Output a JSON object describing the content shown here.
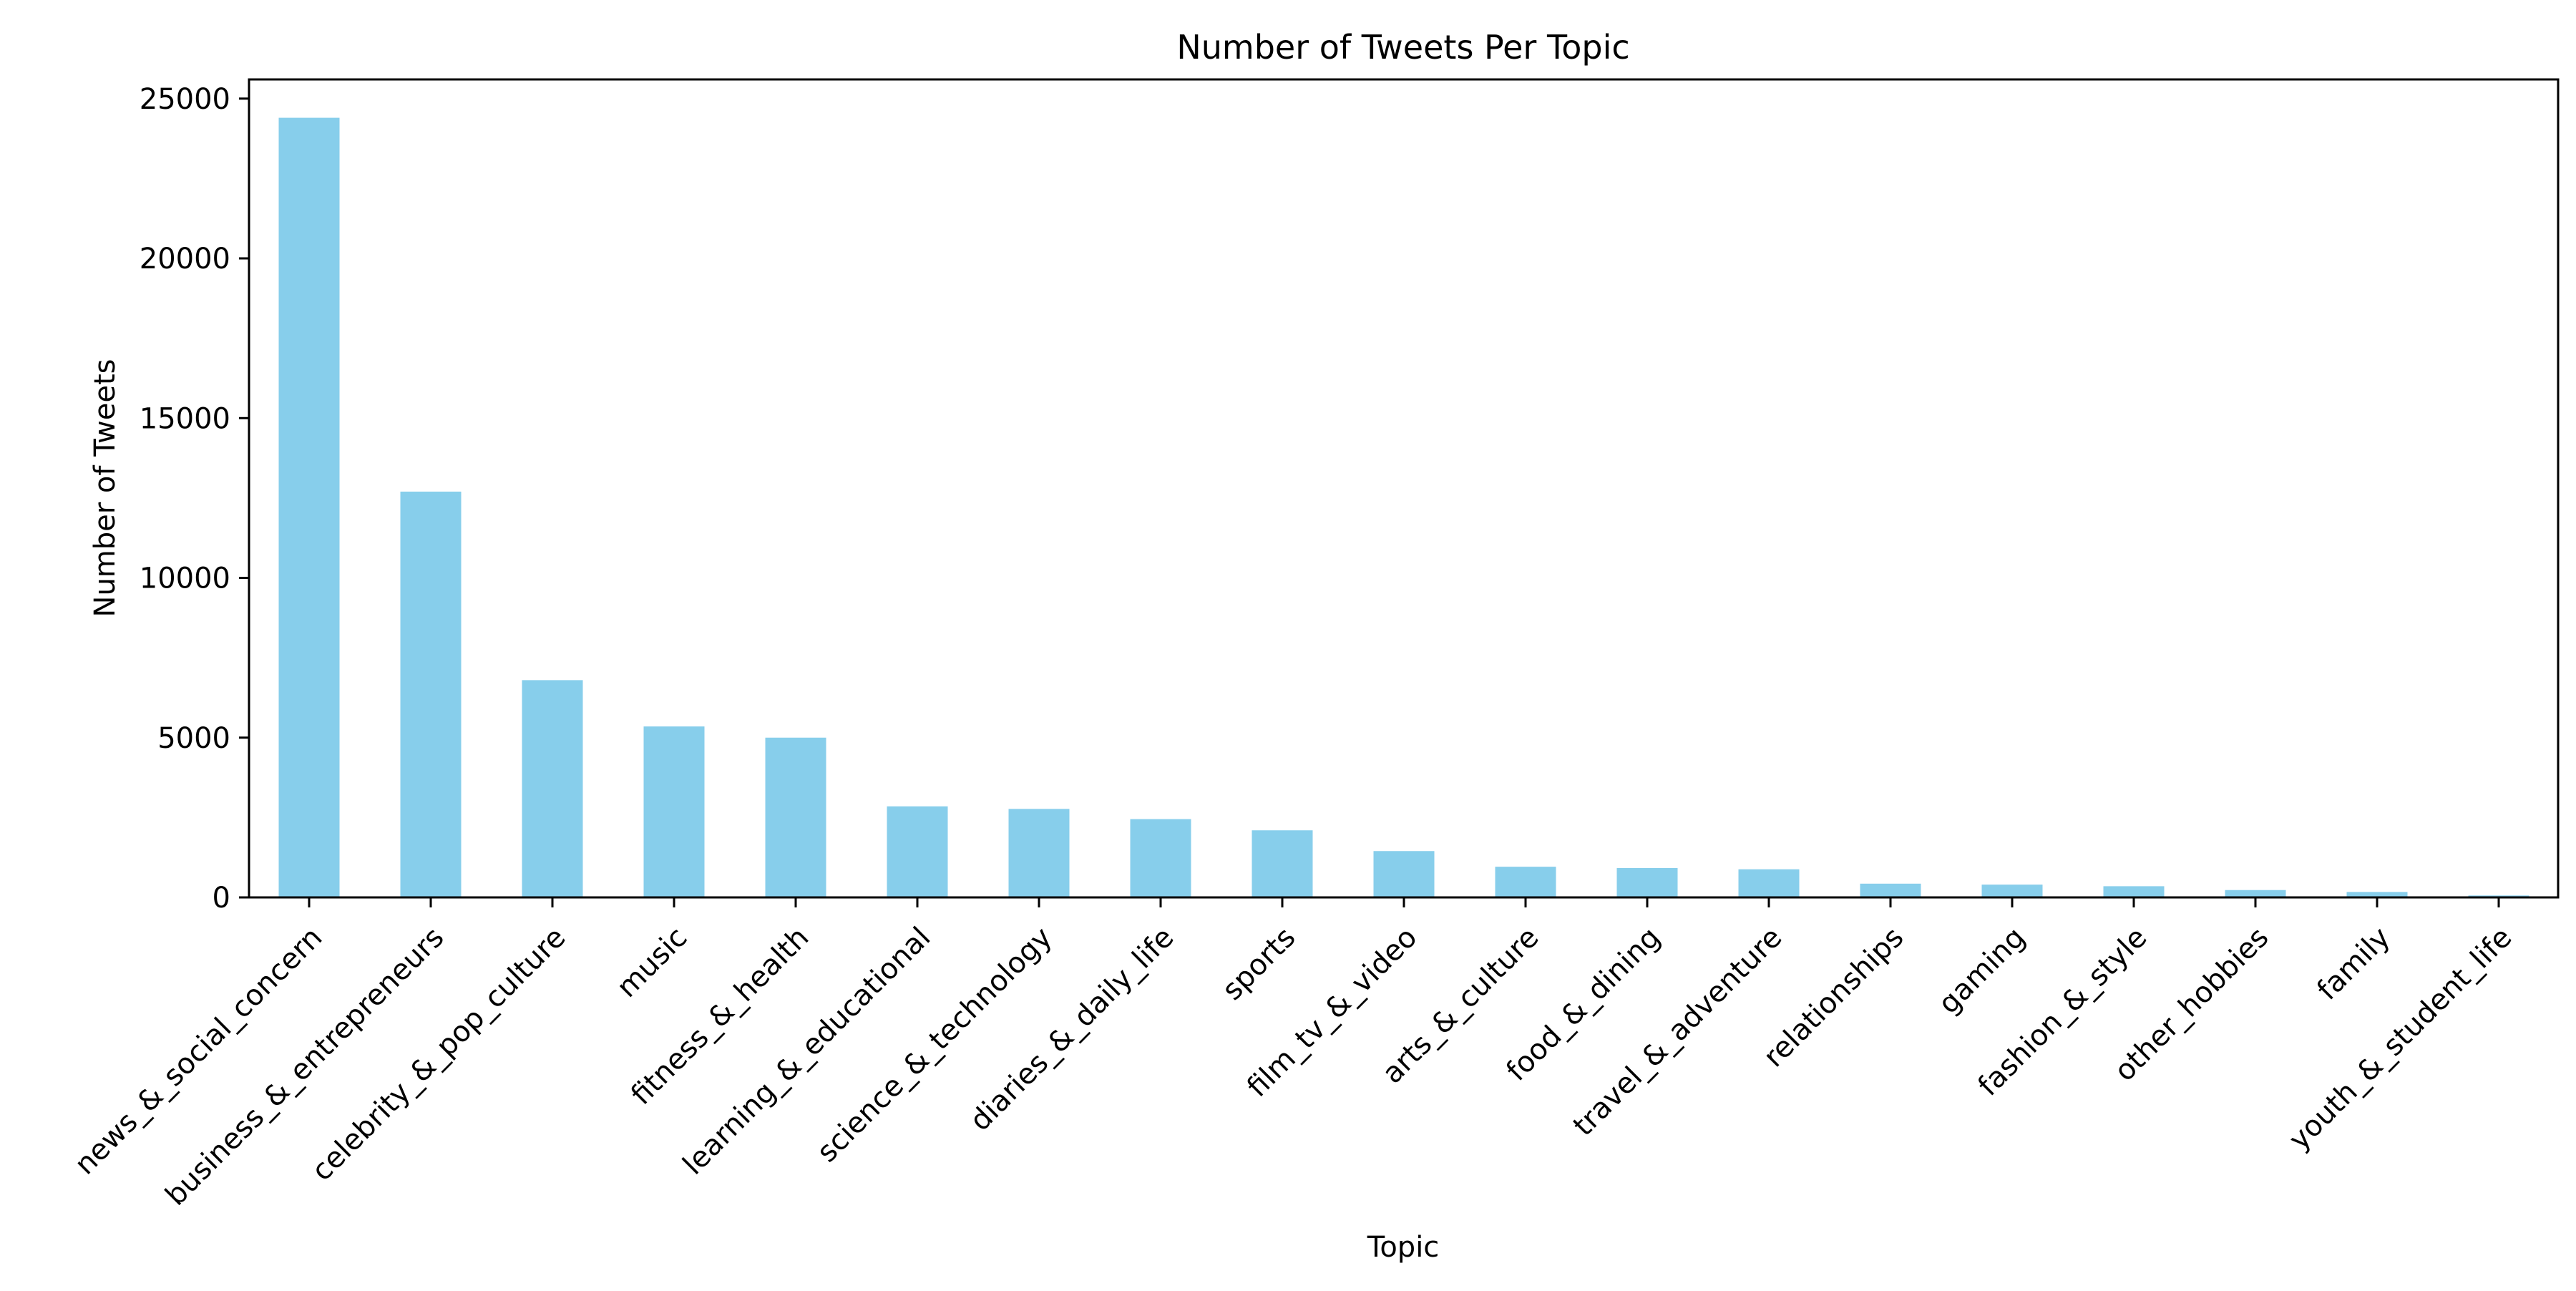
{
  "chart_data": {
    "type": "bar",
    "title": "Number of Tweets Per Topic",
    "xlabel": "Topic",
    "ylabel": "Number of Tweets",
    "ylim": [
      0,
      25600
    ],
    "yticks": [
      0,
      5000,
      10000,
      15000,
      20000,
      25000
    ],
    "grid": false,
    "legend": "none",
    "bar_color": "#87CEEB",
    "categories": [
      "news_&_social_concern",
      "business_&_entrepreneurs",
      "celebrity_&_pop_culture",
      "music",
      "fitness_&_health",
      "learning_&_educational",
      "science_&_technology",
      "diaries_&_daily_life",
      "sports",
      "film_tv_&_video",
      "arts_&_culture",
      "food_&_dining",
      "travel_&_adventure",
      "relationships",
      "gaming",
      "fashion_&_style",
      "other_hobbies",
      "family",
      "youth_&_student_life"
    ],
    "values": [
      24400,
      12700,
      6800,
      5350,
      5000,
      2850,
      2770,
      2450,
      2100,
      1450,
      960,
      920,
      880,
      430,
      400,
      350,
      230,
      170,
      60
    ]
  }
}
